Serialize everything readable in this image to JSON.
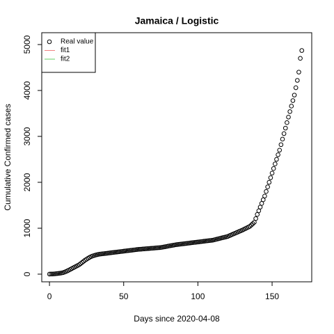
{
  "chart_data": {
    "type": "scatter",
    "title": "Jamaica / Logistic",
    "x_label": "Days since 2020-04-08",
    "y_label": "Cumulative Confirmed cases",
    "xlim": [
      -5.2,
      176.7
    ],
    "ylim": [
      -167,
      5258
    ],
    "xticks": [
      0,
      50,
      100,
      150
    ],
    "yticks": [
      0,
      1000,
      2000,
      3000,
      4000,
      5000
    ],
    "legend_position": "topleft",
    "series": [
      {
        "name": "Real value",
        "color": "#000000",
        "marker": "open-circle",
        "x": [
          0,
          1,
          2,
          3,
          4,
          5,
          6,
          7,
          8,
          9,
          10,
          11,
          12,
          13,
          14,
          15,
          16,
          17,
          18,
          19,
          20,
          21,
          22,
          23,
          24,
          25,
          26,
          27,
          28,
          29,
          30,
          31,
          32,
          33,
          34,
          35,
          36,
          37,
          38,
          39,
          40,
          41,
          42,
          43,
          44,
          45,
          46,
          47,
          48,
          49,
          50,
          51,
          52,
          53,
          54,
          55,
          56,
          57,
          58,
          59,
          60,
          61,
          62,
          63,
          64,
          65,
          66,
          67,
          68,
          69,
          70,
          71,
          72,
          73,
          74,
          75,
          76,
          77,
          78,
          79,
          80,
          81,
          82,
          83,
          84,
          85,
          86,
          87,
          88,
          89,
          90,
          91,
          92,
          93,
          94,
          95,
          96,
          97,
          98,
          99,
          100,
          101,
          102,
          103,
          104,
          105,
          106,
          107,
          108,
          109,
          110,
          111,
          112,
          113,
          114,
          115,
          116,
          117,
          118,
          119,
          120,
          121,
          122,
          123,
          124,
          125,
          126,
          127,
          128,
          129,
          130,
          131,
          132,
          133,
          134,
          135,
          136,
          137,
          138,
          139,
          140,
          141,
          142,
          143,
          144,
          145,
          146,
          147,
          148,
          149,
          150,
          151,
          152,
          153,
          154,
          155,
          156,
          157,
          158,
          159,
          160,
          161,
          162,
          163,
          164,
          165,
          166,
          167,
          168,
          169,
          170
        ],
        "values": [
          1,
          2,
          3,
          5,
          8,
          12,
          16,
          20,
          25,
          32,
          42,
          55,
          70,
          86,
          103,
          120,
          138,
          155,
          172,
          188,
          205,
          230,
          255,
          280,
          305,
          325,
          345,
          365,
          382,
          395,
          405,
          415,
          423,
          430,
          436,
          440,
          444,
          448,
          452,
          456,
          460,
          464,
          468,
          472,
          476,
          480,
          484,
          488,
          492,
          496,
          500,
          504,
          508,
          512,
          516,
          520,
          524,
          528,
          532,
          536,
          540,
          543,
          545,
          548,
          550,
          553,
          556,
          558,
          561,
          564,
          566,
          569,
          572,
          574,
          577,
          580,
          586,
          592,
          598,
          604,
          610,
          616,
          622,
          628,
          634,
          640,
          644,
          648,
          652,
          656,
          660,
          664,
          668,
          672,
          676,
          680,
          684,
          688,
          692,
          696,
          700,
          704,
          708,
          712,
          716,
          720,
          724,
          728,
          732,
          736,
          740,
          748,
          756,
          764,
          772,
          780,
          788,
          796,
          804,
          812,
          820,
          834,
          848,
          862,
          876,
          890,
          904,
          918,
          932,
          946,
          960,
          976,
          992,
          1008,
          1024,
          1040,
          1070,
          1100,
          1130,
          1210,
          1300,
          1380,
          1460,
          1540,
          1620,
          1700,
          1800,
          1900,
          2000,
          2100,
          2200,
          2300,
          2400,
          2500,
          2600,
          2700,
          2820,
          2940,
          3060,
          3180,
          3300,
          3420,
          3540,
          3660,
          3780,
          3900,
          4060,
          4220,
          4400,
          4700,
          4870
        ]
      }
    ],
    "legend_extra": [
      {
        "name": "fit1",
        "color": "#f08080"
      },
      {
        "name": "fit2",
        "color": "#66cc66"
      }
    ]
  }
}
